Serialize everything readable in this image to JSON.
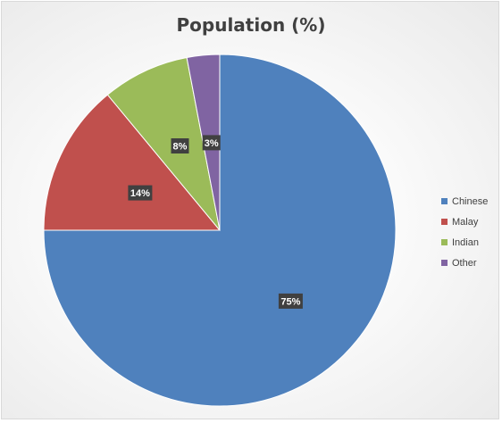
{
  "chart_data": {
    "type": "pie",
    "title": "Population (%)",
    "categories": [
      "Chinese",
      "Malay",
      "Indian",
      "Other"
    ],
    "values": [
      75,
      14,
      8,
      3
    ],
    "data_labels": [
      "75%",
      "14%",
      "8%",
      "3%"
    ],
    "colors": [
      "#4f81bd",
      "#c0504d",
      "#9bbb59",
      "#8064a2"
    ],
    "legend": "right"
  }
}
